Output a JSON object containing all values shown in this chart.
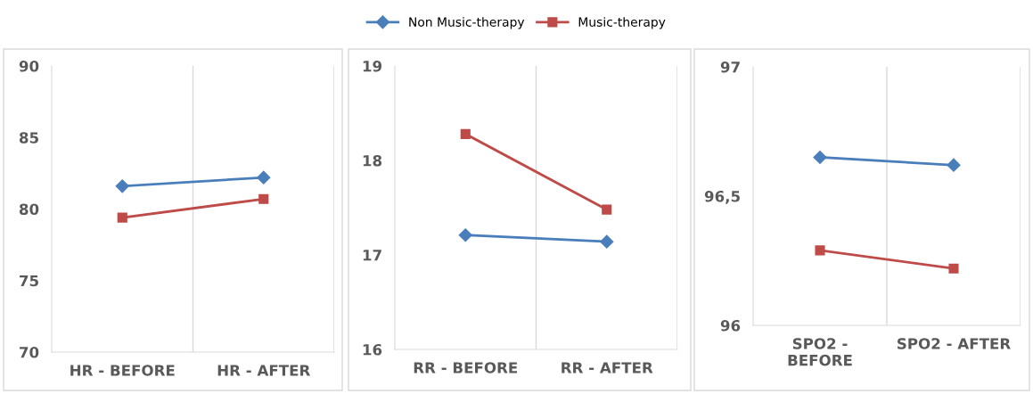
{
  "chart_data": [
    {
      "type": "line",
      "categories": [
        "HR - BEFORE",
        "HR - AFTER"
      ],
      "ylim": [
        70,
        90
      ],
      "yticks": [
        70,
        75,
        80,
        85,
        90
      ],
      "grid": "x",
      "legend": "top",
      "series": [
        {
          "name": "Non Music-therapy",
          "color": "#4a7ebb",
          "marker": "diamond",
          "values": [
            81.6,
            82.2
          ]
        },
        {
          "name": "Music-therapy",
          "color": "#be4b48",
          "marker": "square",
          "values": [
            79.4,
            80.7
          ]
        }
      ]
    },
    {
      "type": "line",
      "categories": [
        "RR - BEFORE",
        "RR - AFTER"
      ],
      "ylim": [
        16,
        19
      ],
      "yticks": [
        16,
        17,
        18,
        19
      ],
      "grid": "x",
      "series": [
        {
          "color": "#4a7ebb",
          "marker": "diamond",
          "values": [
            17.21,
            17.14
          ]
        },
        {
          "color": "#be4b48",
          "marker": "square",
          "values": [
            18.28,
            17.48
          ]
        }
      ]
    },
    {
      "type": "line",
      "categories": [
        "SPO2 -\nBEFORE",
        "SPO2 - AFTER"
      ],
      "ylim": [
        96,
        97
      ],
      "yticks": [
        96,
        {
          "value": 96.5,
          "label": "96,5"
        },
        97
      ],
      "grid": "x",
      "series": [
        {
          "color": "#4a7ebb",
          "marker": "diamond",
          "values": [
            96.65,
            96.62
          ]
        },
        {
          "color": "#be4b48",
          "marker": "square",
          "values": [
            96.29,
            96.22
          ]
        }
      ]
    }
  ]
}
